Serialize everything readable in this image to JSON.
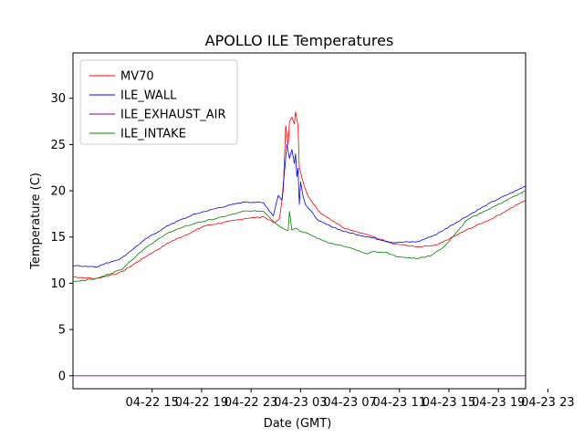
{
  "chart_data": {
    "type": "line",
    "title": "APOLLO ILE Temperatures",
    "xlabel": "Date (GMT)",
    "ylabel": "Temperature (C)",
    "xlim": [
      -3.4,
      33.2
    ],
    "ylim": [
      -1.4,
      34.9
    ],
    "x_unit": "hours since 2022-04-22 12:00 GMT",
    "xticks": [
      {
        "x": 3,
        "label": "04-22 15"
      },
      {
        "x": 7,
        "label": "04-22 19"
      },
      {
        "x": 11,
        "label": "04-22 23"
      },
      {
        "x": 15,
        "label": "04-23 03"
      },
      {
        "x": 19,
        "label": "04-23 07"
      },
      {
        "x": 23,
        "label": "04-23 11"
      },
      {
        "x": 27,
        "label": "04-23 15"
      },
      {
        "x": 31,
        "label": "04-23 19"
      },
      {
        "x": 35,
        "label": "04-23 23"
      }
    ],
    "yticks": [
      0,
      5,
      10,
      15,
      20,
      25,
      30
    ],
    "legend_position": "top-left",
    "series": [
      {
        "name": "MV70",
        "color": "#ff0000",
        "x": [
          -3.4,
          -1.5,
          0.5,
          2.5,
          4.5,
          6.5,
          7.2,
          8.5,
          10.5,
          12.0,
          12.9,
          13.3,
          13.6,
          13.8,
          14.0,
          14.1,
          14.3,
          14.5,
          14.6,
          14.8,
          14.9,
          15.1,
          15.3,
          15.6,
          16.5,
          18.5,
          20.5,
          22.5,
          24.5,
          26.0,
          28.5,
          30.5,
          33.2
        ],
        "y": [
          10.7,
          10.5,
          11.2,
          12.9,
          14.5,
          15.7,
          16.2,
          16.5,
          17.0,
          17.2,
          16.5,
          17.0,
          20.0,
          27.0,
          25.0,
          27.5,
          28.0,
          27.2,
          28.5,
          27.0,
          22.5,
          21.5,
          20.5,
          19.5,
          17.7,
          16.0,
          15.2,
          14.3,
          13.9,
          14.1,
          15.8,
          17.0,
          19.0
        ]
      },
      {
        "name": "ILE_WALL",
        "color": "#0000ff",
        "x": [
          -3.4,
          -1.5,
          0.5,
          2.5,
          4.5,
          6.5,
          8.5,
          10.5,
          12.0,
          12.8,
          13.0,
          13.2,
          13.5,
          13.7,
          13.9,
          14.1,
          14.3,
          14.5,
          14.6,
          14.7,
          14.8,
          14.9,
          15.0,
          15.2,
          15.4,
          16.5,
          18.5,
          20.5,
          22.5,
          24.5,
          26.0,
          28.5,
          30.5,
          33.2
        ],
        "y": [
          11.9,
          11.8,
          12.7,
          14.8,
          16.4,
          17.5,
          18.2,
          18.8,
          18.7,
          17.3,
          18.5,
          19.5,
          19.0,
          22.0,
          25.0,
          23.5,
          24.5,
          23.0,
          24.0,
          21.5,
          22.5,
          18.5,
          21.0,
          19.5,
          18.5,
          16.7,
          15.6,
          15.0,
          14.4,
          14.5,
          15.3,
          17.3,
          18.8,
          20.5
        ]
      },
      {
        "name": "ILE_EXHAUST_AIR",
        "color": "#800080",
        "x": [
          -3.4,
          33.2
        ],
        "y": [
          0.0,
          0.0
        ]
      },
      {
        "name": "ILE_INTAKE",
        "color": "#008000",
        "x": [
          -3.4,
          -1.5,
          0.5,
          2.5,
          4.5,
          6.5,
          8.5,
          10.5,
          12.0,
          12.9,
          13.5,
          14.0,
          14.1,
          14.3,
          14.6,
          14.9,
          15.5,
          16.5,
          17.5,
          18.5,
          19.5,
          20.2,
          21.0,
          22.0,
          23.0,
          24.5,
          25.5,
          26.5,
          28.5,
          30.5,
          33.2
        ],
        "y": [
          10.2,
          10.5,
          11.5,
          13.9,
          15.6,
          16.5,
          17.1,
          17.8,
          17.8,
          16.6,
          16.0,
          15.7,
          17.8,
          15.8,
          16.0,
          15.7,
          15.4,
          14.8,
          14.3,
          14.0,
          13.6,
          13.2,
          13.4,
          13.3,
          12.8,
          12.7,
          13.0,
          13.8,
          16.9,
          18.2,
          20.0
        ]
      }
    ]
  }
}
